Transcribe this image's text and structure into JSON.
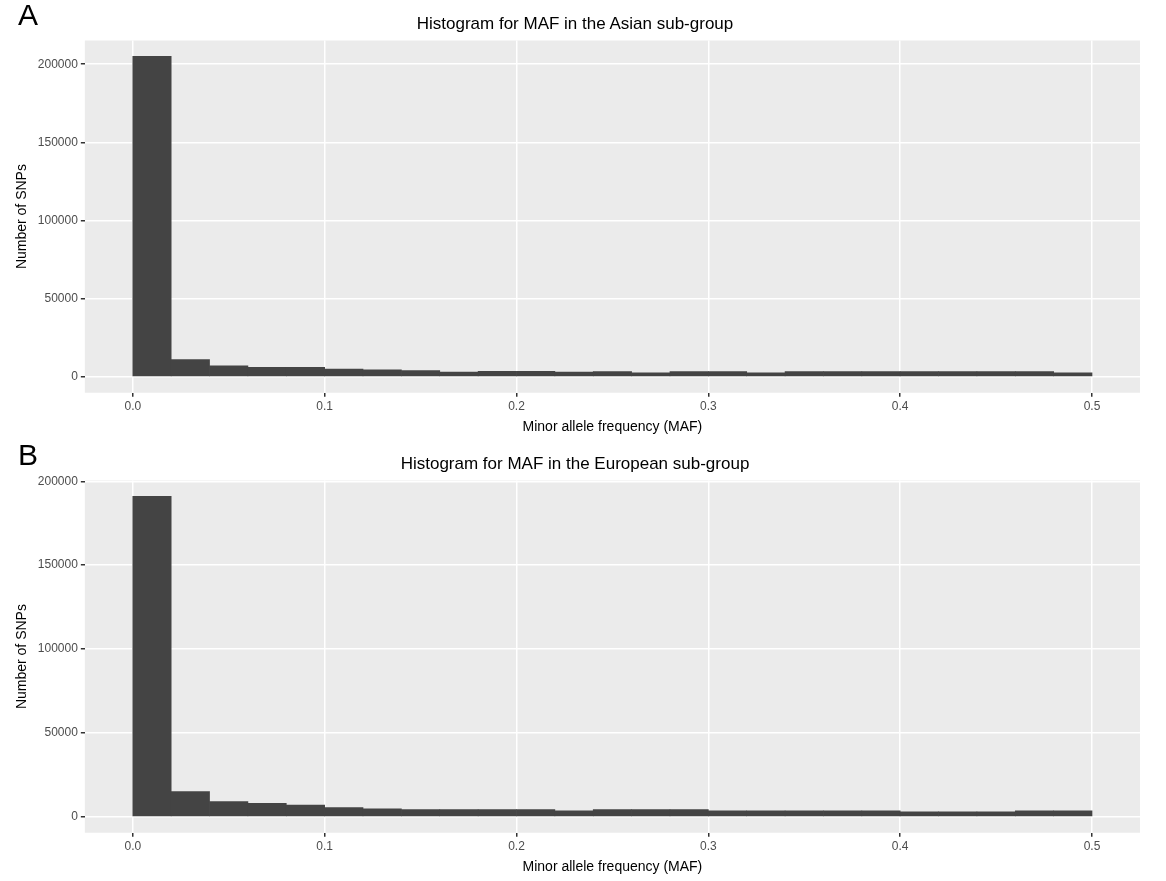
{
  "chart_data": [
    {
      "type": "histogram",
      "title": "Histogram for MAF in the Asian sub-group",
      "xlabel": "Minor allele frequency (MAF)",
      "ylabel": "Number of SNPs",
      "annotations": [
        "A"
      ],
      "color": "#444444",
      "bins": [
        0,
        0.02,
        0.04,
        0.06,
        0.08,
        0.1,
        0.12,
        0.14,
        0.16,
        0.18,
        0.2,
        0.22,
        0.24,
        0.26,
        0.28,
        0.3,
        0.32,
        0.34,
        0.36,
        0.38,
        0.4,
        0.42,
        0.44,
        0.46,
        0.48,
        0.5
      ],
      "values": [
        205000,
        11000,
        7000,
        6000,
        6000,
        5000,
        4500,
        4000,
        3000,
        3500,
        3500,
        3000,
        3300,
        2600,
        3300,
        3300,
        2600,
        3300,
        3300,
        3300,
        3300,
        3300,
        3300,
        3300,
        2500
      ],
      "xlim": [
        -0.025,
        0.525
      ],
      "xticks": [
        {
          "value": 0,
          "label": "0.0"
        },
        0.1,
        0.2,
        0.3,
        0.4,
        0.5
      ],
      "ylim": [
        -10250,
        215250
      ],
      "yticks": [
        0,
        50000,
        100000,
        150000,
        200000
      ],
      "grid": true
    },
    {
      "type": "histogram",
      "title": "Histogram for MAF in the European sub-group",
      "xlabel": "Minor allele frequency (MAF)",
      "ylabel": "Number of SNPs",
      "annotations": [
        "B"
      ],
      "color": "#444444",
      "bins": [
        0,
        0.02,
        0.04,
        0.06,
        0.08,
        0.1,
        0.12,
        0.14,
        0.16,
        0.18,
        0.2,
        0.22,
        0.24,
        0.26,
        0.28,
        0.3,
        0.32,
        0.34,
        0.36,
        0.38,
        0.4,
        0.42,
        0.44,
        0.46,
        0.48,
        0.5
      ],
      "values": [
        191000,
        15000,
        9000,
        8000,
        7000,
        5500,
        4800,
        4300,
        4300,
        4300,
        4300,
        3500,
        4300,
        4300,
        4300,
        3500,
        3500,
        3500,
        3500,
        3500,
        2900,
        2900,
        2900,
        3600,
        3600
      ],
      "xlim": [
        -0.025,
        0.525
      ],
      "xticks": [
        {
          "value": 0,
          "label": "0.0"
        },
        0.1,
        0.2,
        0.3,
        0.4,
        0.5
      ],
      "ylim": [
        -9550,
        200550
      ],
      "yticks": [
        0,
        50000,
        100000,
        150000,
        200000
      ],
      "grid": true
    }
  ]
}
